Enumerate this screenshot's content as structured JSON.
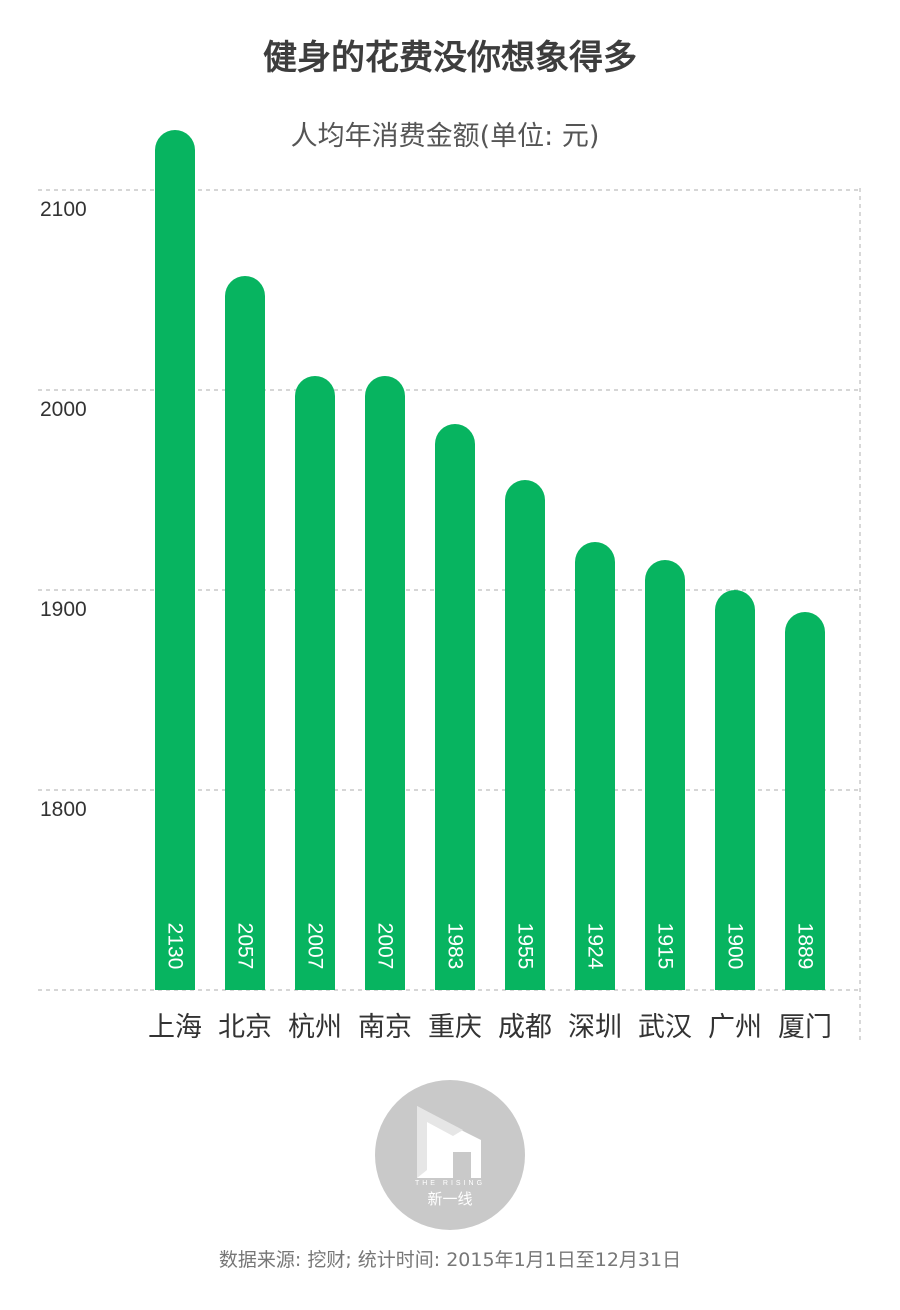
{
  "title": "健身的花费没你想象得多",
  "logo": {
    "en": "THE RISING",
    "cn": "新一线"
  },
  "source": "数据来源: 挖财; 统计时间: 2015年1月1日至12月31日",
  "colors": {
    "bar": "#07b460",
    "grid": "#bdbdbd",
    "text": "#333333",
    "logo": "#c9c9c9"
  },
  "chart_data": {
    "type": "bar",
    "title": "",
    "subtitle": "人均年消费金额(单位: 元)",
    "xlabel": "",
    "ylabel": "",
    "categories": [
      "上海",
      "北京",
      "杭州",
      "南京",
      "重庆",
      "成都",
      "深圳",
      "武汉",
      "广州",
      "厦门"
    ],
    "values": [
      2130,
      2057,
      2007,
      2007,
      1983,
      1955,
      1924,
      1915,
      1900,
      1889
    ],
    "yticks": [
      2100,
      2000,
      1900,
      1800
    ],
    "ylim": [
      1700,
      2100
    ],
    "grid": true,
    "legend": "none"
  }
}
